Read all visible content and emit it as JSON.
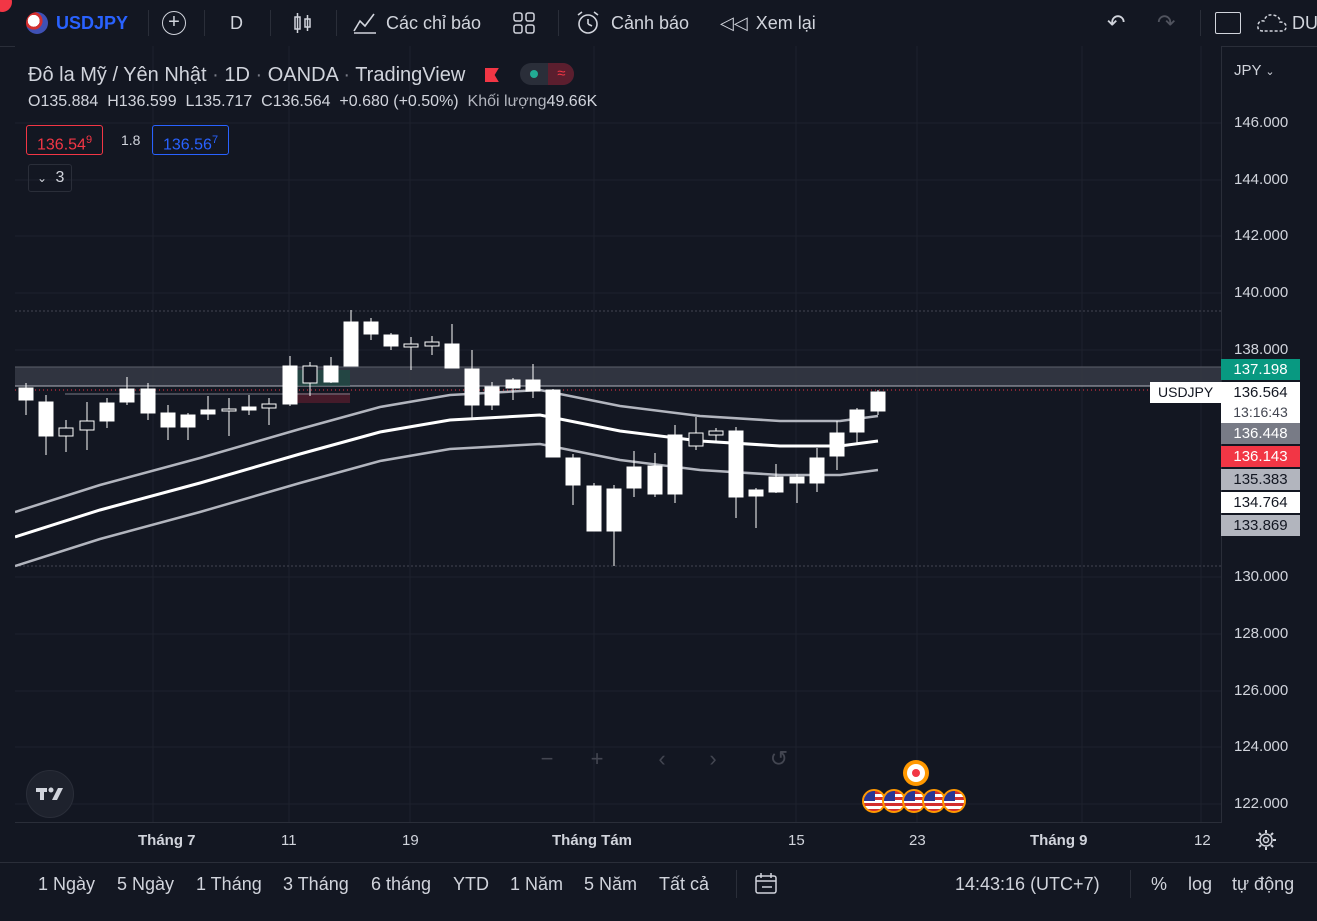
{
  "toolbar": {
    "symbol": "USDJPY",
    "interval": "D",
    "indicators_label": "Các chỉ báo",
    "alerts_label": "Cảnh báo",
    "replay_label": "Xem lại",
    "account_label": "DU"
  },
  "legend": {
    "name": "Đô la Mỹ / Yên Nhật",
    "timeframe": "1D",
    "broker": "OANDA",
    "source": "TradingView",
    "open_label": "O",
    "open": "135.884",
    "high_label": "H",
    "high": "136.599",
    "low_label": "L",
    "low": "135.717",
    "close_label": "C",
    "close": "136.564",
    "change": "+0.680 (+0.50%)",
    "volume_label": "Khối lượng",
    "volume": "49.66K",
    "bid": "136.54",
    "bid_sup": "9",
    "spread": "1.8",
    "ask": "136.56",
    "ask_sup": "7",
    "indicator_count": "3"
  },
  "price_axis": {
    "currency": "JPY",
    "labels": [
      "146.000",
      "144.000",
      "142.000",
      "140.000",
      "138.000",
      "130.000",
      "128.000",
      "126.000",
      "124.000",
      "122.000"
    ],
    "tags": [
      {
        "value": "137.198",
        "color": "#089981"
      },
      {
        "value": "136.448",
        "color": "#787b86"
      },
      {
        "value": "136.143",
        "color": "#f23645"
      },
      {
        "value": "135.383",
        "color": "#b2b5be"
      },
      {
        "value": "134.764",
        "color": "#ffffff"
      },
      {
        "value": "133.869",
        "color": "#b2b5be"
      }
    ],
    "current_symbol": "USDJPY",
    "current_price": "136.564",
    "countdown": "13:16:43"
  },
  "time_axis": {
    "labels": [
      "Tháng 7",
      "11",
      "19",
      "Tháng Tám",
      "15",
      "23",
      "Tháng 9",
      "12"
    ]
  },
  "bottom": {
    "ranges": [
      "1 Ngày",
      "5 Ngày",
      "1 Tháng",
      "3 Tháng",
      "6 tháng",
      "YTD",
      "1 Năm",
      "5 Năm",
      "Tất cả"
    ],
    "clock": "14:43:16 (UTC+7)",
    "percent": "%",
    "log": "log",
    "auto": "tự động"
  },
  "icons": [
    "plus-circle-icon",
    "bar-style-icon",
    "indicators-icon",
    "layout-icon",
    "alarm-icon",
    "replay-icon",
    "undo-icon",
    "redo-icon",
    "fullscreen-icon",
    "cloud-icon",
    "settings-icon",
    "calendar-range-icon",
    "tradingview-logo-icon"
  ]
}
